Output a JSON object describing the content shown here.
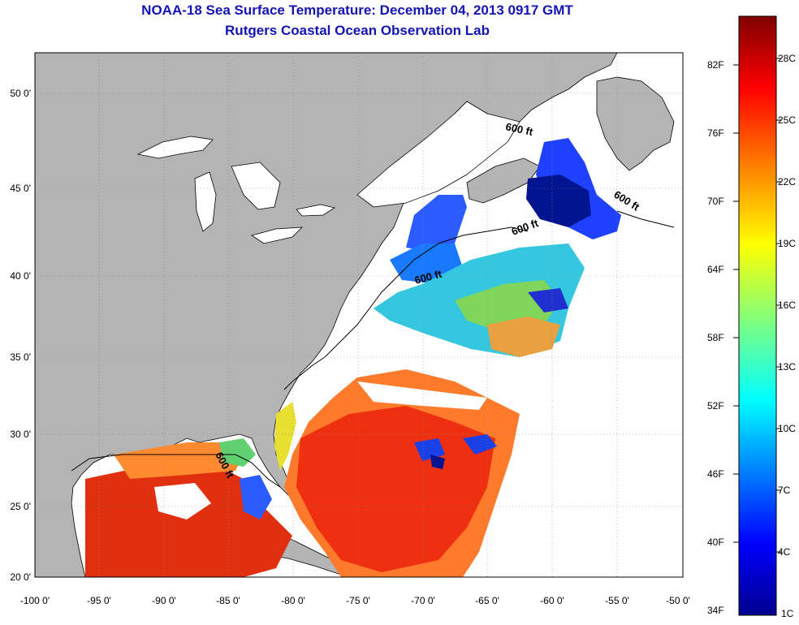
{
  "title": {
    "line1": "NOAA-18 Sea Surface Temperature:  December 04, 2013 0917 GMT",
    "line2": "Rutgers Coastal Ocean Observation Lab"
  },
  "map": {
    "lon_range": [
      -100,
      -50
    ],
    "lat_range": [
      20,
      52.5
    ],
    "lat_ticks": [
      "50 0'",
      "45 0'",
      "40 0'",
      "35 0'",
      "30 0'",
      "25 0'",
      "20 0'"
    ],
    "lon_ticks": [
      "-100 0'",
      "-95 0'",
      "-90 0'",
      "-85 0'",
      "-80 0'",
      "-75 0'",
      "-70 0'",
      "-65 0'",
      "-60 0'",
      "-55 0'",
      "-50 0'"
    ],
    "isobath_labels": [
      "600 ft",
      "600 ft",
      "600 ft",
      "600 ft",
      "600 ft"
    ],
    "grid": "dotted",
    "colors": {
      "land": "#b4b4b4",
      "cloud_or_no_data": "#ffffff",
      "title": "#1414b4"
    }
  },
  "colorbar": {
    "fahrenheit_labels": [
      "82F",
      "76F",
      "70F",
      "64F",
      "58F",
      "52F",
      "46F",
      "40F",
      "34F"
    ],
    "celsius_labels": [
      "28C",
      "25C",
      "22C",
      "19C",
      "16C",
      "13C",
      "10C",
      "7C",
      "4C",
      "1C"
    ],
    "colormap": "jet"
  }
}
